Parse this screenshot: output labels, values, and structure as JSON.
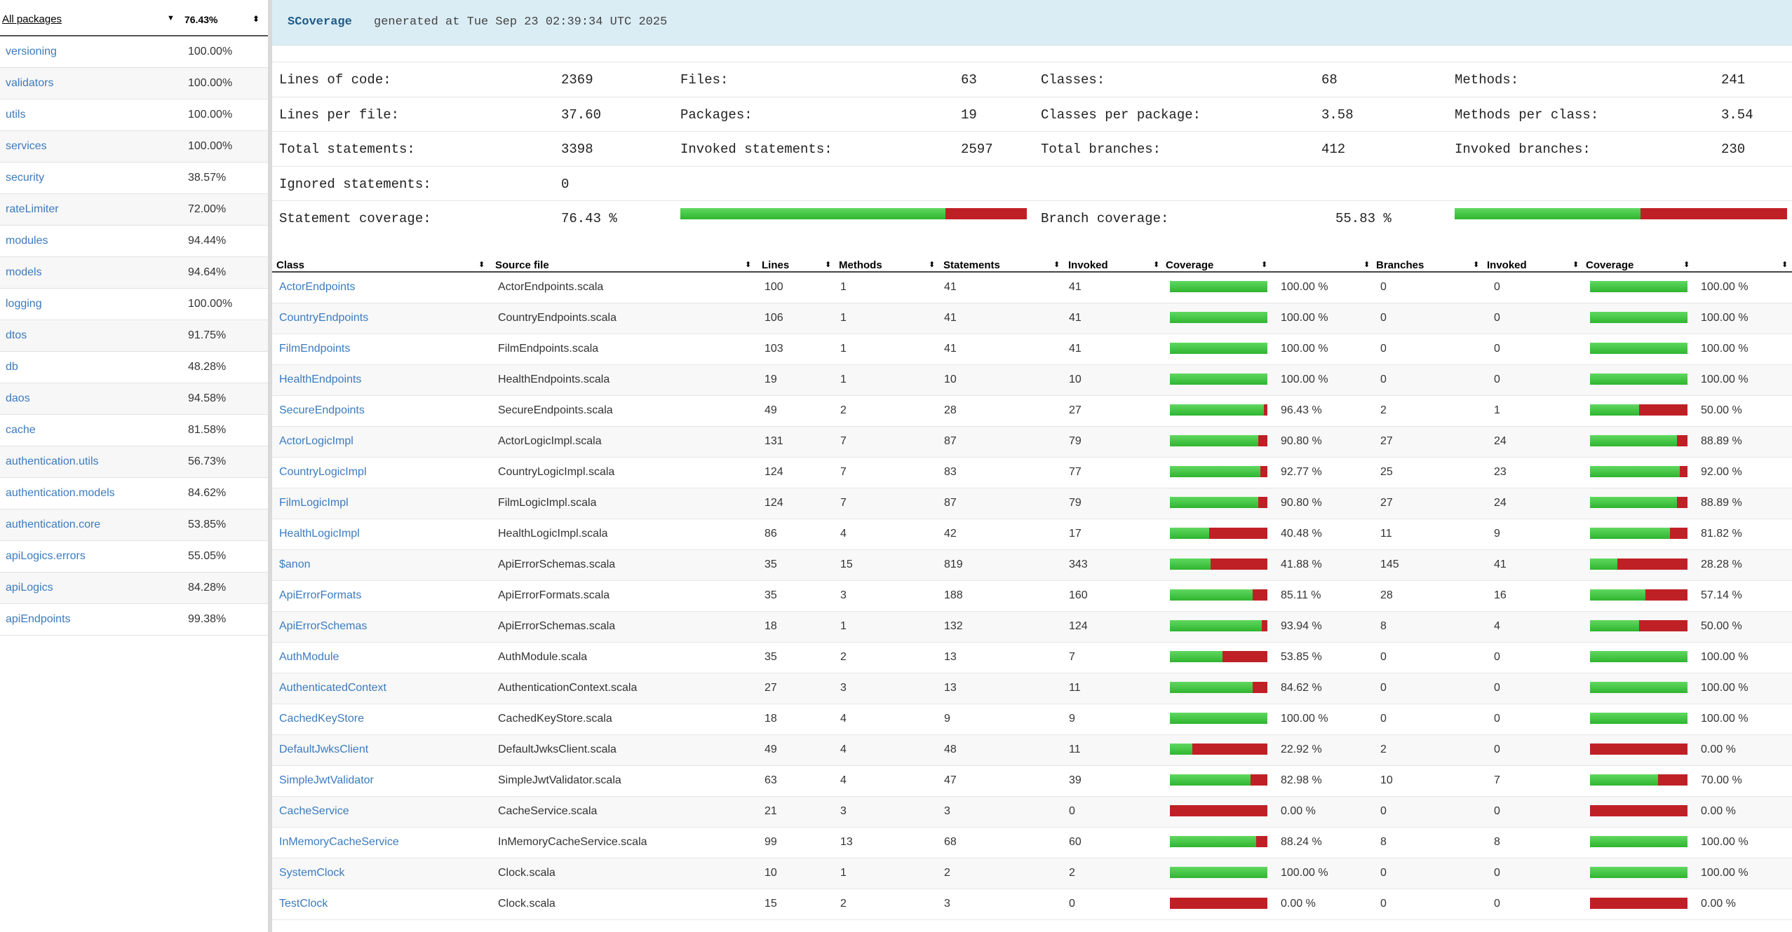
{
  "sidebar": {
    "header": {
      "label": "All packages",
      "percent": "76.43%"
    },
    "packages": [
      {
        "name": "versioning",
        "pct": "100.00%"
      },
      {
        "name": "validators",
        "pct": "100.00%"
      },
      {
        "name": "utils",
        "pct": "100.00%"
      },
      {
        "name": "services",
        "pct": "100.00%"
      },
      {
        "name": "security",
        "pct": "38.57%"
      },
      {
        "name": "rateLimiter",
        "pct": "72.00%"
      },
      {
        "name": "modules",
        "pct": "94.44%"
      },
      {
        "name": "models",
        "pct": "94.64%"
      },
      {
        "name": "logging",
        "pct": "100.00%"
      },
      {
        "name": "dtos",
        "pct": "91.75%"
      },
      {
        "name": "db",
        "pct": "48.28%"
      },
      {
        "name": "daos",
        "pct": "94.58%"
      },
      {
        "name": "cache",
        "pct": "81.58%"
      },
      {
        "name": "authentication.utils",
        "pct": "56.73%"
      },
      {
        "name": "authentication.models",
        "pct": "84.62%"
      },
      {
        "name": "authentication.core",
        "pct": "53.85%"
      },
      {
        "name": "apiLogics.errors",
        "pct": "55.05%"
      },
      {
        "name": "apiLogics",
        "pct": "84.28%"
      },
      {
        "name": "apiEndpoints",
        "pct": "99.38%"
      }
    ]
  },
  "banner": {
    "brand": "SCoverage",
    "generated": "generated at Tue Sep 23 02:39:34 UTC 2025"
  },
  "stats": {
    "rows": [
      [
        [
          "Lines of code:",
          "2369"
        ],
        [
          "Files:",
          "63"
        ],
        [
          "Classes:",
          "68"
        ],
        [
          "Methods:",
          "241"
        ]
      ],
      [
        [
          "Lines per file:",
          "37.60"
        ],
        [
          "Packages:",
          "19"
        ],
        [
          "Classes per package:",
          "3.58"
        ],
        [
          "Methods per class:",
          "3.54"
        ]
      ],
      [
        [
          "Total statements:",
          "3398"
        ],
        [
          "Invoked statements:",
          "2597"
        ],
        [
          "Total branches:",
          "412"
        ],
        [
          "Invoked branches:",
          "230"
        ]
      ],
      [
        [
          "Ignored statements:",
          "0"
        ]
      ]
    ],
    "statement_coverage_label": "Statement coverage:",
    "statement_coverage_value": "76.43 %",
    "statement_coverage_fraction": 0.7643,
    "branch_coverage_label": "Branch coverage:",
    "branch_coverage_value": "55.83 %",
    "branch_coverage_fraction": 0.5583
  },
  "table": {
    "headers": [
      "Class",
      "Source file",
      "Lines",
      "Methods",
      "Statements",
      "Invoked",
      "Coverage",
      "",
      "Branches",
      "Invoked",
      "Coverage",
      ""
    ],
    "rows": [
      {
        "cls": "ActorEndpoints",
        "file": "ActorEndpoints.scala",
        "lines": "100",
        "methods": "1",
        "stmts": "41",
        "inv": "41",
        "cov": "100.00 %",
        "covf": 1.0,
        "br": "0",
        "binv": "0",
        "bcov": "100.00 %",
        "bcovf": 1.0
      },
      {
        "cls": "CountryEndpoints",
        "file": "CountryEndpoints.scala",
        "lines": "106",
        "methods": "1",
        "stmts": "41",
        "inv": "41",
        "cov": "100.00 %",
        "covf": 1.0,
        "br": "0",
        "binv": "0",
        "bcov": "100.00 %",
        "bcovf": 1.0
      },
      {
        "cls": "FilmEndpoints",
        "file": "FilmEndpoints.scala",
        "lines": "103",
        "methods": "1",
        "stmts": "41",
        "inv": "41",
        "cov": "100.00 %",
        "covf": 1.0,
        "br": "0",
        "binv": "0",
        "bcov": "100.00 %",
        "bcovf": 1.0
      },
      {
        "cls": "HealthEndpoints",
        "file": "HealthEndpoints.scala",
        "lines": "19",
        "methods": "1",
        "stmts": "10",
        "inv": "10",
        "cov": "100.00 %",
        "covf": 1.0,
        "br": "0",
        "binv": "0",
        "bcov": "100.00 %",
        "bcovf": 1.0
      },
      {
        "cls": "SecureEndpoints",
        "file": "SecureEndpoints.scala",
        "lines": "49",
        "methods": "2",
        "stmts": "28",
        "inv": "27",
        "cov": "96.43 %",
        "covf": 0.9643,
        "br": "2",
        "binv": "1",
        "bcov": "50.00 %",
        "bcovf": 0.5
      },
      {
        "cls": "ActorLogicImpl",
        "file": "ActorLogicImpl.scala",
        "lines": "131",
        "methods": "7",
        "stmts": "87",
        "inv": "79",
        "cov": "90.80 %",
        "covf": 0.908,
        "br": "27",
        "binv": "24",
        "bcov": "88.89 %",
        "bcovf": 0.8889
      },
      {
        "cls": "CountryLogicImpl",
        "file": "CountryLogicImpl.scala",
        "lines": "124",
        "methods": "7",
        "stmts": "83",
        "inv": "77",
        "cov": "92.77 %",
        "covf": 0.9277,
        "br": "25",
        "binv": "23",
        "bcov": "92.00 %",
        "bcovf": 0.92
      },
      {
        "cls": "FilmLogicImpl",
        "file": "FilmLogicImpl.scala",
        "lines": "124",
        "methods": "7",
        "stmts": "87",
        "inv": "79",
        "cov": "90.80 %",
        "covf": 0.908,
        "br": "27",
        "binv": "24",
        "bcov": "88.89 %",
        "bcovf": 0.8889
      },
      {
        "cls": "HealthLogicImpl",
        "file": "HealthLogicImpl.scala",
        "lines": "86",
        "methods": "4",
        "stmts": "42",
        "inv": "17",
        "cov": "40.48 %",
        "covf": 0.4048,
        "br": "11",
        "binv": "9",
        "bcov": "81.82 %",
        "bcovf": 0.8182
      },
      {
        "cls": "$anon",
        "file": "ApiErrorSchemas.scala",
        "lines": "35",
        "methods": "15",
        "stmts": "819",
        "inv": "343",
        "cov": "41.88 %",
        "covf": 0.4188,
        "br": "145",
        "binv": "41",
        "bcov": "28.28 %",
        "bcovf": 0.2828
      },
      {
        "cls": "ApiErrorFormats",
        "file": "ApiErrorFormats.scala",
        "lines": "35",
        "methods": "3",
        "stmts": "188",
        "inv": "160",
        "cov": "85.11 %",
        "covf": 0.8511,
        "br": "28",
        "binv": "16",
        "bcov": "57.14 %",
        "bcovf": 0.5714
      },
      {
        "cls": "ApiErrorSchemas",
        "file": "ApiErrorSchemas.scala",
        "lines": "18",
        "methods": "1",
        "stmts": "132",
        "inv": "124",
        "cov": "93.94 %",
        "covf": 0.9394,
        "br": "8",
        "binv": "4",
        "bcov": "50.00 %",
        "bcovf": 0.5
      },
      {
        "cls": "AuthModule",
        "file": "AuthModule.scala",
        "lines": "35",
        "methods": "2",
        "stmts": "13",
        "inv": "7",
        "cov": "53.85 %",
        "covf": 0.5385,
        "br": "0",
        "binv": "0",
        "bcov": "100.00 %",
        "bcovf": 1.0
      },
      {
        "cls": "AuthenticatedContext",
        "file": "AuthenticationContext.scala",
        "lines": "27",
        "methods": "3",
        "stmts": "13",
        "inv": "11",
        "cov": "84.62 %",
        "covf": 0.8462,
        "br": "0",
        "binv": "0",
        "bcov": "100.00 %",
        "bcovf": 1.0
      },
      {
        "cls": "CachedKeyStore",
        "file": "CachedKeyStore.scala",
        "lines": "18",
        "methods": "4",
        "stmts": "9",
        "inv": "9",
        "cov": "100.00 %",
        "covf": 1.0,
        "br": "0",
        "binv": "0",
        "bcov": "100.00 %",
        "bcovf": 1.0
      },
      {
        "cls": "DefaultJwksClient",
        "file": "DefaultJwksClient.scala",
        "lines": "49",
        "methods": "4",
        "stmts": "48",
        "inv": "11",
        "cov": "22.92 %",
        "covf": 0.2292,
        "br": "2",
        "binv": "0",
        "bcov": "0.00 %",
        "bcovf": 0.0
      },
      {
        "cls": "SimpleJwtValidator",
        "file": "SimpleJwtValidator.scala",
        "lines": "63",
        "methods": "4",
        "stmts": "47",
        "inv": "39",
        "cov": "82.98 %",
        "covf": 0.8298,
        "br": "10",
        "binv": "7",
        "bcov": "70.00 %",
        "bcovf": 0.7
      },
      {
        "cls": "CacheService",
        "file": "CacheService.scala",
        "lines": "21",
        "methods": "3",
        "stmts": "3",
        "inv": "0",
        "cov": "0.00 %",
        "covf": 0.0,
        "br": "0",
        "binv": "0",
        "bcov": "0.00 %",
        "bcovf": 0.0
      },
      {
        "cls": "InMemoryCacheService",
        "file": "InMemoryCacheService.scala",
        "lines": "99",
        "methods": "13",
        "stmts": "68",
        "inv": "60",
        "cov": "88.24 %",
        "covf": 0.8824,
        "br": "8",
        "binv": "8",
        "bcov": "100.00 %",
        "bcovf": 1.0
      },
      {
        "cls": "SystemClock",
        "file": "Clock.scala",
        "lines": "10",
        "methods": "1",
        "stmts": "2",
        "inv": "2",
        "cov": "100.00 %",
        "covf": 1.0,
        "br": "0",
        "binv": "0",
        "bcov": "100.00 %",
        "bcovf": 1.0
      },
      {
        "cls": "TestClock",
        "file": "Clock.scala",
        "lines": "15",
        "methods": "2",
        "stmts": "3",
        "inv": "0",
        "cov": "0.00 %",
        "covf": 0.0,
        "br": "0",
        "binv": "0",
        "bcov": "0.00 %",
        "bcovf": 0.0
      }
    ]
  },
  "colors": {
    "covered": "#3cc43c",
    "uncovered": "#bf2026",
    "link": "#3b7bbf",
    "banner_bg": "#dbedf4"
  }
}
